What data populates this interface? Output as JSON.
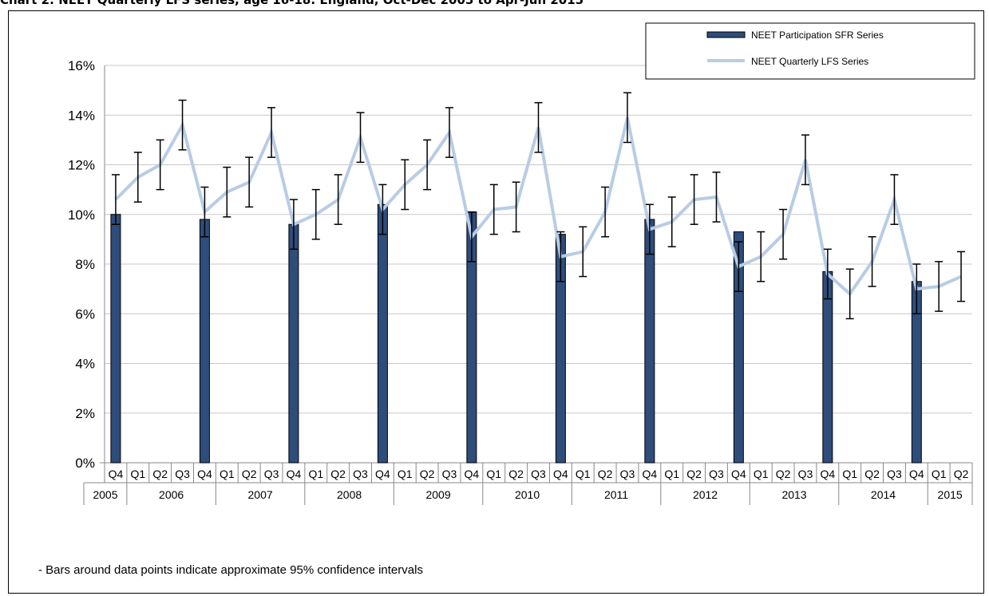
{
  "chart_title": "Chart 2: NEET Quarterly LFS series, age 16-18: England, Oct-Dec 2005 to Apr-Jun 2015",
  "note": "- Bars around data points indicate approximate 95% confidence intervals",
  "chart_data": {
    "type": "bar",
    "title": "Chart 2: NEET Quarterly LFS series, age 16-18: England, Oct-Dec 2005 to Apr-Jun 2015",
    "ylim": [
      0,
      16
    ],
    "y_ticks": [
      "0%",
      "2%",
      "4%",
      "6%",
      "8%",
      "10%",
      "12%",
      "14%",
      "16%"
    ],
    "grid": "horizontal",
    "legend_position": "top-right",
    "categories": [
      "Q4",
      "Q1",
      "Q2",
      "Q3",
      "Q4",
      "Q1",
      "Q2",
      "Q3",
      "Q4",
      "Q1",
      "Q2",
      "Q3",
      "Q4",
      "Q1",
      "Q2",
      "Q3",
      "Q4",
      "Q1",
      "Q2",
      "Q3",
      "Q4",
      "Q1",
      "Q2",
      "Q3",
      "Q4",
      "Q1",
      "Q2",
      "Q3",
      "Q4",
      "Q1",
      "Q2",
      "Q3",
      "Q4",
      "Q1",
      "Q2",
      "Q3",
      "Q4",
      "Q1",
      "Q2"
    ],
    "year_groups": [
      {
        "label": "2005",
        "count": 1
      },
      {
        "label": "2006",
        "count": 4
      },
      {
        "label": "2007",
        "count": 4
      },
      {
        "label": "2008",
        "count": 4
      },
      {
        "label": "2009",
        "count": 4
      },
      {
        "label": "2010",
        "count": 4
      },
      {
        "label": "2011",
        "count": 4
      },
      {
        "label": "2012",
        "count": 4
      },
      {
        "label": "2013",
        "count": 4
      },
      {
        "label": "2014",
        "count": 4
      },
      {
        "label": "2015",
        "count": 2
      }
    ],
    "series": [
      {
        "name": "NEET Participation SFR Series",
        "type": "bar",
        "color": "#2e4d7b",
        "values": [
          10.0,
          null,
          null,
          null,
          9.8,
          null,
          null,
          null,
          9.6,
          null,
          null,
          null,
          10.4,
          null,
          null,
          null,
          10.1,
          null,
          null,
          null,
          9.2,
          null,
          null,
          null,
          9.8,
          null,
          null,
          null,
          9.3,
          null,
          null,
          null,
          7.7,
          null,
          null,
          null,
          7.3,
          null,
          null
        ]
      },
      {
        "name": "NEET Quarterly LFS Series",
        "type": "line",
        "color": "#b8cce4",
        "values": [
          10.6,
          11.5,
          12.0,
          13.6,
          10.1,
          10.9,
          11.3,
          13.3,
          9.6,
          10.0,
          10.6,
          13.1,
          10.2,
          11.2,
          12.0,
          13.3,
          9.1,
          10.2,
          10.3,
          13.5,
          8.3,
          8.5,
          10.1,
          13.9,
          9.4,
          9.7,
          10.6,
          10.7,
          7.9,
          8.3,
          9.2,
          12.2,
          7.6,
          6.8,
          8.1,
          10.6,
          7.0,
          7.1,
          7.5
        ]
      }
    ],
    "confidence_intervals": [
      [
        9.6,
        11.6
      ],
      [
        10.5,
        12.5
      ],
      [
        11.0,
        13.0
      ],
      [
        12.6,
        14.6
      ],
      [
        9.1,
        11.1
      ],
      [
        9.9,
        11.9
      ],
      [
        10.3,
        12.3
      ],
      [
        12.3,
        14.3
      ],
      [
        8.6,
        10.6
      ],
      [
        9.0,
        11.0
      ],
      [
        9.6,
        11.6
      ],
      [
        12.1,
        14.1
      ],
      [
        9.2,
        11.2
      ],
      [
        10.2,
        12.2
      ],
      [
        11.0,
        13.0
      ],
      [
        12.3,
        14.3
      ],
      [
        8.1,
        10.1
      ],
      [
        9.2,
        11.2
      ],
      [
        9.3,
        11.3
      ],
      [
        12.5,
        14.5
      ],
      [
        7.3,
        9.3
      ],
      [
        7.5,
        9.5
      ],
      [
        9.1,
        11.1
      ],
      [
        12.9,
        14.9
      ],
      [
        8.4,
        10.4
      ],
      [
        8.7,
        10.7
      ],
      [
        9.6,
        11.6
      ],
      [
        9.7,
        11.7
      ],
      [
        6.9,
        8.9
      ],
      [
        7.3,
        9.3
      ],
      [
        8.2,
        10.2
      ],
      [
        11.2,
        13.2
      ],
      [
        6.6,
        8.6
      ],
      [
        5.8,
        7.8
      ],
      [
        7.1,
        9.1
      ],
      [
        9.6,
        11.6
      ],
      [
        6.0,
        8.0
      ],
      [
        6.1,
        8.1
      ],
      [
        6.5,
        8.5
      ]
    ]
  }
}
